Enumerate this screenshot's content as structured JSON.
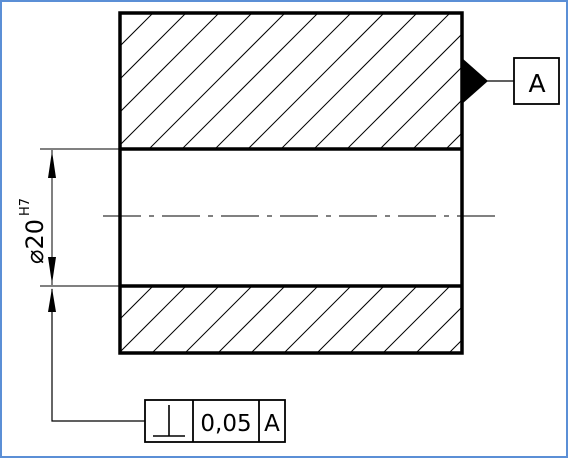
{
  "colors": {
    "frame_border": "#5b8fd6",
    "line": "#000000",
    "background": "#ffffff"
  },
  "datum_label": "A",
  "diameter_dimension": {
    "symbol": "⌀",
    "value": "20",
    "tolerance_class": "H7"
  },
  "feature_control_frame": {
    "symbol_name": "perpendicularity-icon",
    "tolerance": "0,05",
    "datum_reference": "A"
  }
}
